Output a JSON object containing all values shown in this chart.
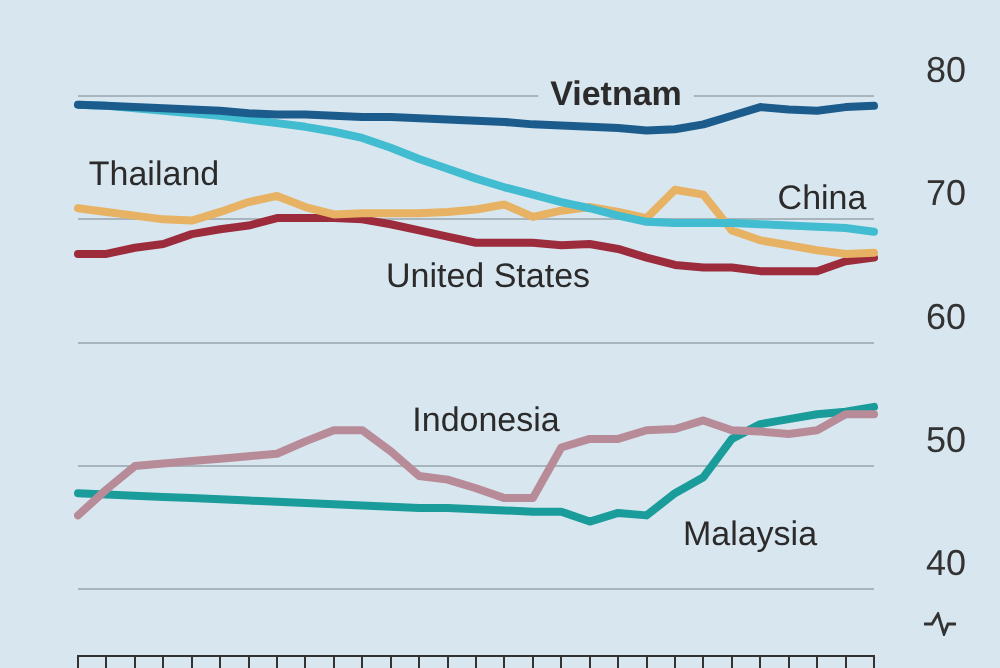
{
  "chart_data": {
    "type": "line",
    "categories": [
      null,
      null,
      null,
      null,
      null,
      null,
      null,
      null,
      null,
      null,
      null,
      null,
      null,
      null,
      null,
      null,
      null,
      null,
      null,
      null,
      null,
      null,
      null,
      null,
      null,
      null,
      null,
      null,
      null
    ],
    "series": [
      {
        "name": "Vietnam",
        "color": "#1b5c8c",
        "values": [
          79.3,
          79.2,
          79.1,
          79.0,
          78.9,
          78.8,
          78.6,
          78.5,
          78.5,
          78.4,
          78.3,
          78.3,
          78.2,
          78.1,
          78.0,
          77.9,
          77.7,
          77.6,
          77.5,
          77.4,
          77.2,
          77.3,
          77.7,
          78.4,
          79.1,
          78.9,
          78.8,
          79.1,
          79.2
        ]
      },
      {
        "name": "China",
        "color": "#41bcd0",
        "values": [
          79.3,
          79.2,
          79.0,
          78.8,
          78.6,
          78.4,
          78.1,
          77.8,
          77.5,
          77.1,
          76.6,
          75.8,
          74.9,
          74.1,
          73.3,
          72.6,
          72.0,
          71.4,
          70.9,
          70.3,
          69.8,
          69.7,
          69.7,
          69.7,
          69.6,
          69.5,
          69.4,
          69.3,
          69.0
        ]
      },
      {
        "name": "Thailand",
        "color": "#e7b263",
        "values": [
          70.9,
          70.6,
          70.3,
          70.0,
          69.9,
          70.6,
          71.4,
          71.9,
          71.0,
          70.4,
          70.5,
          70.5,
          70.5,
          70.6,
          70.8,
          71.2,
          70.2,
          70.7,
          71.0,
          70.6,
          70.1,
          72.4,
          72.0,
          69.1,
          68.3,
          67.9,
          67.5,
          67.2,
          67.3
        ]
      },
      {
        "name": "United States",
        "color": "#9c2b3c",
        "values": [
          67.2,
          67.2,
          67.7,
          68.0,
          68.8,
          69.2,
          69.5,
          70.1,
          70.1,
          70.1,
          70.0,
          69.6,
          69.1,
          68.6,
          68.1,
          68.1,
          68.1,
          67.9,
          68.0,
          67.6,
          66.9,
          66.3,
          66.1,
          66.1,
          65.8,
          65.8,
          65.8,
          66.6,
          66.9
        ]
      },
      {
        "name": "Indonesia",
        "color": "#b88b98",
        "values": [
          46.0,
          48.1,
          50.0,
          50.2,
          50.4,
          50.6,
          50.8,
          51.0,
          52.0,
          52.9,
          52.9,
          51.2,
          49.2,
          48.9,
          48.2,
          47.4,
          47.4,
          51.5,
          52.2,
          52.2,
          52.9,
          53.0,
          53.7,
          52.9,
          52.8,
          52.6,
          52.9,
          54.2,
          54.2
        ]
      },
      {
        "name": "Malaysia",
        "color": "#1a9c9a",
        "values": [
          47.8,
          47.7,
          47.6,
          47.5,
          47.4,
          47.3,
          47.2,
          47.1,
          47.0,
          46.9,
          46.8,
          46.7,
          46.6,
          46.6,
          46.5,
          46.4,
          46.3,
          46.3,
          45.5,
          46.2,
          46.0,
          47.8,
          49.1,
          52.2,
          53.4,
          53.8,
          54.2,
          54.4,
          54.8
        ]
      }
    ],
    "ylim": [
      34.6,
      80
    ],
    "yticks": [
      40,
      50,
      60,
      70,
      80
    ],
    "grid": "y",
    "legend": false,
    "marker": "none",
    "line_style": "solid"
  }
}
